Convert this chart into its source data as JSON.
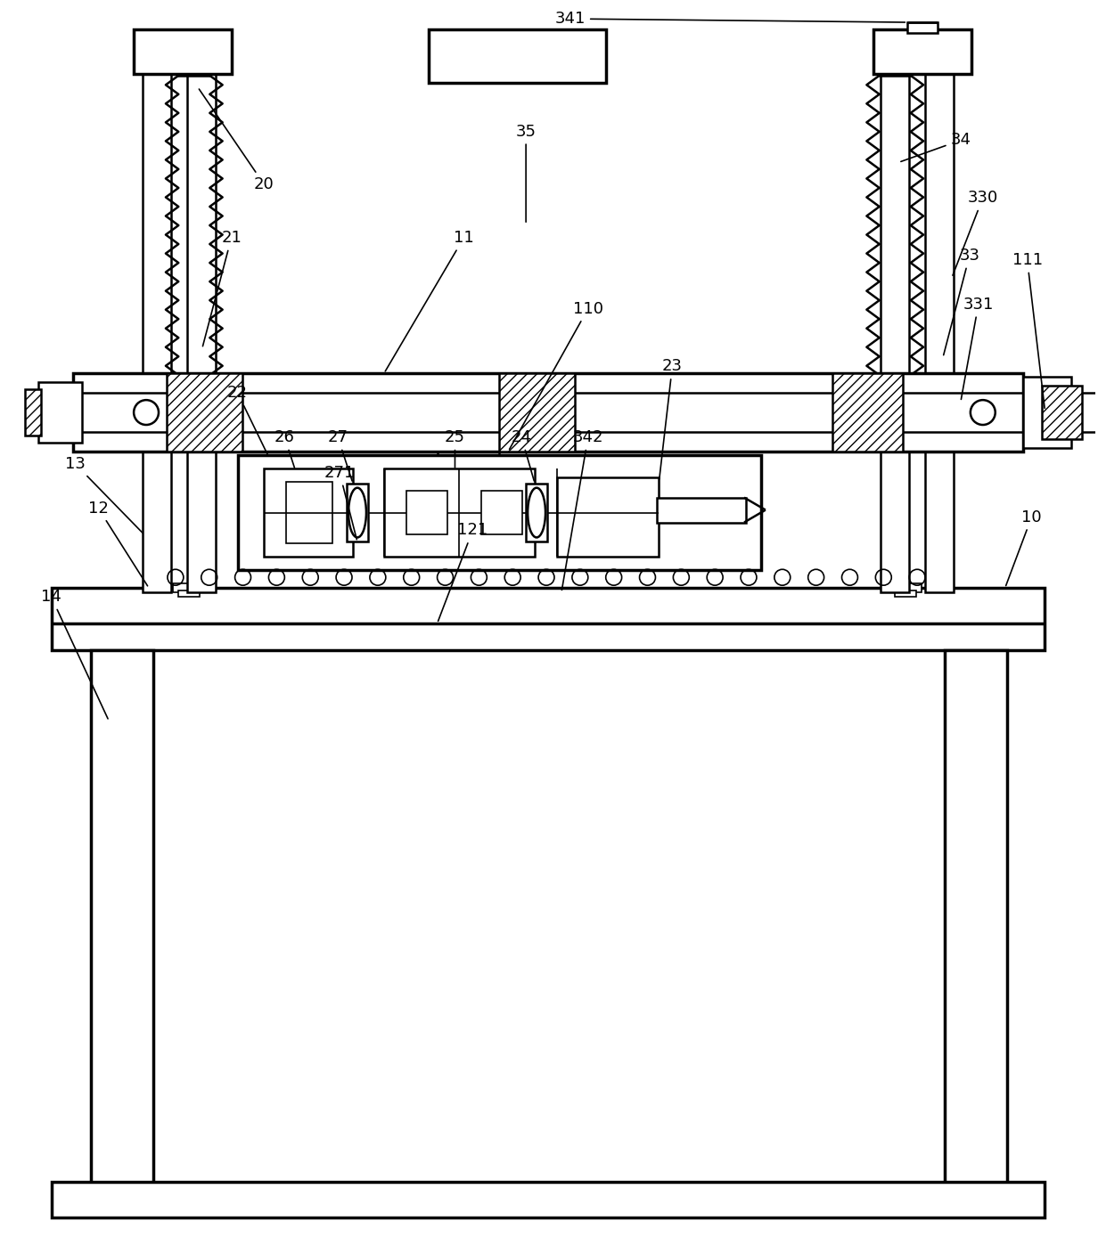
{
  "bg_color": "#ffffff",
  "line_color": "#000000",
  "fig_width": 12.32,
  "fig_height": 13.99
}
